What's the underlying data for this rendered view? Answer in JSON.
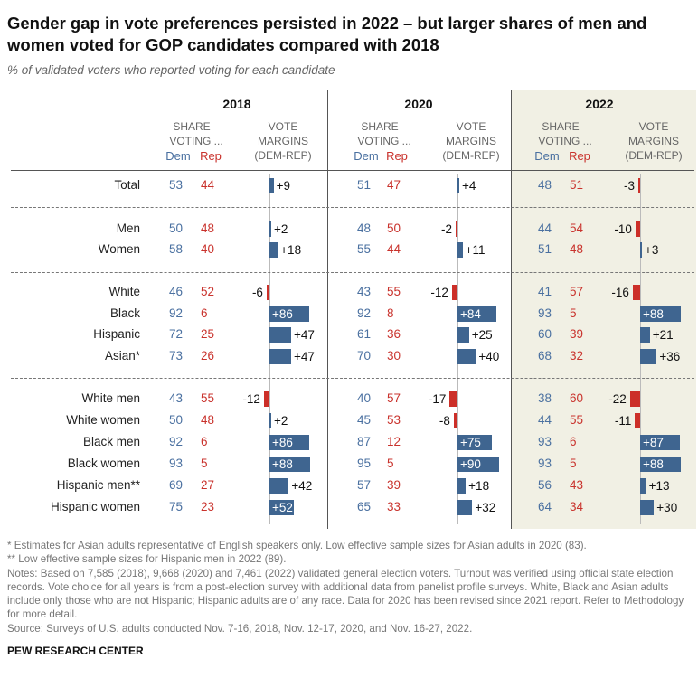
{
  "title": "Gender gap in vote preferences persisted in 2022 – but larger shares of men and women voted for GOP candidates compared with 2018",
  "subtitle": "% of validated voters who reported voting for each candidate",
  "colors": {
    "dem": "#4a70a0",
    "rep": "#c9322c",
    "dem_bar": "#3f6590",
    "rep_bar": "#cc2f28",
    "highlight_panel": "#f1f0e4"
  },
  "column_headers": {
    "share_line1": "SHARE",
    "share_line2": "VOTING ...",
    "dem": "Dem",
    "rep": "Rep",
    "margin_line1": "VOTE",
    "margin_line2": "MARGINS",
    "margin_line3": "(DEM-REP)"
  },
  "chart_data": {
    "type": "table",
    "years": [
      "2018",
      "2020",
      "2022"
    ],
    "highlighted_year": "2022",
    "groups": [
      [
        "Total"
      ],
      [
        "Men",
        "Women"
      ],
      [
        "White",
        "Black",
        "Hispanic",
        "Asian*"
      ],
      [
        "White men",
        "White women",
        "Black men",
        "Black women",
        "Hispanic men**",
        "Hispanic women"
      ]
    ],
    "rows": [
      {
        "label": "Total",
        "dem": [
          53,
          51,
          48
        ],
        "rep": [
          44,
          47,
          51
        ],
        "margin": [
          "+9",
          "+4",
          "-3"
        ]
      },
      {
        "label": "Men",
        "dem": [
          50,
          48,
          44
        ],
        "rep": [
          48,
          50,
          54
        ],
        "margin": [
          "+2",
          "-2",
          "-10"
        ]
      },
      {
        "label": "Women",
        "dem": [
          58,
          55,
          51
        ],
        "rep": [
          40,
          44,
          48
        ],
        "margin": [
          "+18",
          "+11",
          "+3"
        ]
      },
      {
        "label": "White",
        "dem": [
          46,
          43,
          41
        ],
        "rep": [
          52,
          55,
          57
        ],
        "margin": [
          "-6",
          "-12",
          "-16"
        ]
      },
      {
        "label": "Black",
        "dem": [
          92,
          92,
          93
        ],
        "rep": [
          6,
          8,
          5
        ],
        "margin": [
          "+86",
          "+84",
          "+88"
        ]
      },
      {
        "label": "Hispanic",
        "dem": [
          72,
          61,
          60
        ],
        "rep": [
          25,
          36,
          39
        ],
        "margin": [
          "+47",
          "+25",
          "+21"
        ]
      },
      {
        "label": "Asian*",
        "dem": [
          73,
          70,
          68
        ],
        "rep": [
          26,
          30,
          32
        ],
        "margin": [
          "+47",
          "+40",
          "+36"
        ]
      },
      {
        "label": "White men",
        "dem": [
          43,
          40,
          38
        ],
        "rep": [
          55,
          57,
          60
        ],
        "margin": [
          "-12",
          "-17",
          "-22"
        ]
      },
      {
        "label": "White women",
        "dem": [
          50,
          45,
          44
        ],
        "rep": [
          48,
          53,
          55
        ],
        "margin": [
          "+2",
          "-8",
          "-11"
        ]
      },
      {
        "label": "Black men",
        "dem": [
          92,
          87,
          93
        ],
        "rep": [
          6,
          12,
          6
        ],
        "margin": [
          "+86",
          "+75",
          "+87"
        ]
      },
      {
        "label": "Black women",
        "dem": [
          93,
          95,
          93
        ],
        "rep": [
          5,
          5,
          5
        ],
        "margin": [
          "+88",
          "+90",
          "+88"
        ]
      },
      {
        "label": "Hispanic men**",
        "dem": [
          69,
          57,
          56
        ],
        "rep": [
          27,
          39,
          43
        ],
        "margin": [
          "+42",
          "+18",
          "+13"
        ]
      },
      {
        "label": "Hispanic women",
        "dem": [
          75,
          65,
          64
        ],
        "rep": [
          23,
          33,
          34
        ],
        "margin": [
          "+52",
          "+32",
          "+30"
        ]
      }
    ]
  },
  "footnotes": [
    "* Estimates for Asian adults representative of English speakers only. Low effective sample sizes for Asian adults in 2020 (83).",
    "** Low effective sample sizes for Hispanic men in 2022 (89).",
    "Notes: Based on 7,585 (2018), 9,668 (2020) and 7,461 (2022) validated general election voters. Turnout was verified using official state election records. Vote choice for all years is from a post-election survey with additional data from panelist profile surveys. White, Black and Asian adults include only those who are not Hispanic; Hispanic adults are of any race. Data for 2020 has been revised since 2021 report. Refer to Methodology for more detail.",
    "Source: Surveys of U.S. adults conducted Nov. 7-16, 2018, Nov. 12-17, 2020, and Nov. 16-27, 2022."
  ],
  "brand": "PEW RESEARCH CENTER"
}
